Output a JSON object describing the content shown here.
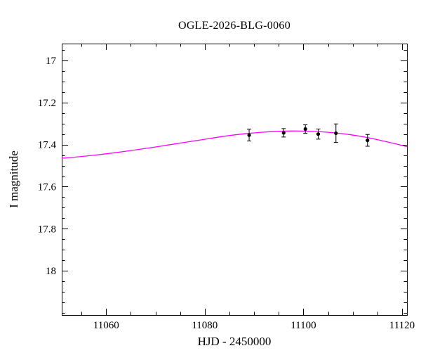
{
  "chart_data": {
    "type": "scatter",
    "title": "OGLE-2026-BLG-0060",
    "xlabel": "HJD - 2450000",
    "ylabel": "I magnitude",
    "x_range": [
      11051,
      11121
    ],
    "y_range": [
      16.92,
      18.21
    ],
    "y_inverted": true,
    "grid": false,
    "legend": "none",
    "background_color": "#ffffff",
    "axis_color": "#000000",
    "x_major_ticks": [
      {
        "value": 11060,
        "label": "11060"
      },
      {
        "value": 11080,
        "label": "11080"
      },
      {
        "value": 11100,
        "label": "11100"
      },
      {
        "value": 11120,
        "label": "11120"
      }
    ],
    "x_minor_step": 5,
    "y_major_ticks": [
      {
        "value": 17.0,
        "label": "17"
      },
      {
        "value": 17.2,
        "label": "17.2"
      },
      {
        "value": 17.4,
        "label": "17.4"
      },
      {
        "value": 17.6,
        "label": "17.6"
      },
      {
        "value": 17.8,
        "label": "17.8"
      },
      {
        "value": 18.0,
        "label": "18"
      }
    ],
    "y_minor_step": 0.05,
    "model_curve": {
      "name": "microlensing-model",
      "color": "#ff00ff",
      "x": [
        11051,
        11054,
        11057,
        11060,
        11063,
        11066,
        11069,
        11072,
        11075,
        11078,
        11081,
        11084,
        11087,
        11090,
        11093,
        11096,
        11099,
        11102,
        11105,
        11108,
        11111,
        11114,
        11117,
        11120,
        11121
      ],
      "mag": [
        17.465,
        17.459,
        17.452,
        17.444,
        17.435,
        17.425,
        17.415,
        17.404,
        17.393,
        17.382,
        17.371,
        17.36,
        17.351,
        17.344,
        17.339,
        17.336,
        17.335,
        17.337,
        17.341,
        17.348,
        17.358,
        17.371,
        17.387,
        17.404,
        17.41
      ]
    },
    "data_points": {
      "name": "observations",
      "color": "#000000",
      "marker_radius": 2.6,
      "points": [
        {
          "x": 11089.0,
          "mag": 17.355,
          "err": 0.028
        },
        {
          "x": 11096.0,
          "mag": 17.344,
          "err": 0.02
        },
        {
          "x": 11100.4,
          "mag": 17.326,
          "err": 0.02
        },
        {
          "x": 11103.0,
          "mag": 17.35,
          "err": 0.024
        },
        {
          "x": 11106.6,
          "mag": 17.346,
          "err": 0.044
        },
        {
          "x": 11113.0,
          "mag": 17.38,
          "err": 0.028
        }
      ]
    }
  }
}
